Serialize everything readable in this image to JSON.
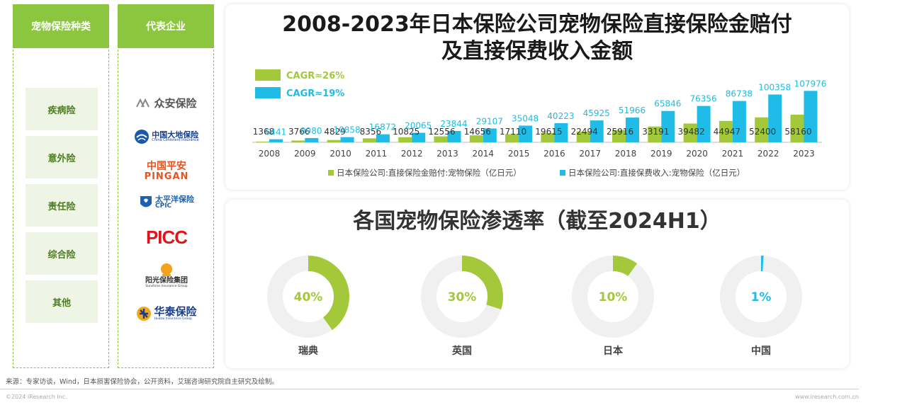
{
  "left": {
    "types_header": "宠物保险种类",
    "corp_header": "代表企业",
    "types": [
      "疾病险",
      "意外险",
      "责任险",
      "综合险",
      "其他"
    ],
    "companies": [
      {
        "name": "众安保险",
        "icon": "zhongan-logo"
      },
      {
        "name": "中国大地保险",
        "sub": "China Continent Insurance",
        "icon": "ccic-logo"
      },
      {
        "name": "中国平安",
        "sub": "PINGAN",
        "icon": "pingan-logo"
      },
      {
        "name": "太平洋保险",
        "sub": "CPIC",
        "icon": "cpic-logo"
      },
      {
        "name": "PICC",
        "icon": "picc-logo"
      },
      {
        "name": "阳光保险集团",
        "sub": "Sunshine Insurance Group",
        "icon": "sunshine-logo"
      },
      {
        "name": "华泰保险",
        "sub": "Huatai Insurance Group",
        "icon": "huatai-logo"
      }
    ]
  },
  "chart_title_line1": "2008-2023年日本保险公司宠物保险直接保险金赔付",
  "chart_title_line2": "及直接保费收入金额",
  "donut_title": "各国宠物保险渗透率（截至2024H1）",
  "colors": {
    "green": "#a3c93a",
    "blue": "#1ebce6",
    "track": "#f0f0f0",
    "header": "#8cc63f"
  },
  "chart_data": [
    {
      "type": "bar",
      "title": "2008-2023年日本保险公司宠物保险直接保险金赔付及直接保费收入金额",
      "categories": [
        "2008",
        "2009",
        "2010",
        "2011",
        "2012",
        "2013",
        "2014",
        "2015",
        "2016",
        "2017",
        "2018",
        "2019",
        "2020",
        "2021",
        "2022",
        "2023"
      ],
      "series": [
        {
          "name": "日本保险公司:直接保险金赔付:宠物保险（亿日元）",
          "color": "#a3c93a",
          "values": [
            1368,
            3766,
            4829,
            8356,
            10825,
            12556,
            14656,
            17110,
            19615,
            22494,
            25916,
            33191,
            39482,
            44947,
            52400,
            58160
          ]
        },
        {
          "name": "日本保险公司:直接保费收入:宠物保险（亿日元）",
          "color": "#1ebce6",
          "values": [
            6441,
            8980,
            10858,
            16872,
            20065,
            23844,
            29107,
            35048,
            40223,
            45925,
            51966,
            65846,
            76356,
            86738,
            100358,
            107976
          ]
        }
      ],
      "annotations": [
        "CAGR≈26%",
        "CAGR≈19%"
      ],
      "ylim": [
        0,
        110000
      ],
      "legend": "bottom"
    },
    {
      "type": "pie",
      "title": "各国宠物保险渗透率（截至2024H1）",
      "categories": [
        "瑞典",
        "英国",
        "日本",
        "中国"
      ],
      "values": [
        40,
        30,
        10,
        1
      ],
      "labels": [
        "40%",
        "30%",
        "10%",
        "1%"
      ],
      "colors": [
        "#a3c93a",
        "#a3c93a",
        "#a3c93a",
        "#1ebce6"
      ]
    }
  ],
  "footer": {
    "source": "来源：专家访谈，Wind，日本损害保险协会，公开资料，艾瑞咨询研究院自主研究及绘制。",
    "copyright": "©2024 iResearch Inc.",
    "site": "www.iresearch.com.cn"
  }
}
